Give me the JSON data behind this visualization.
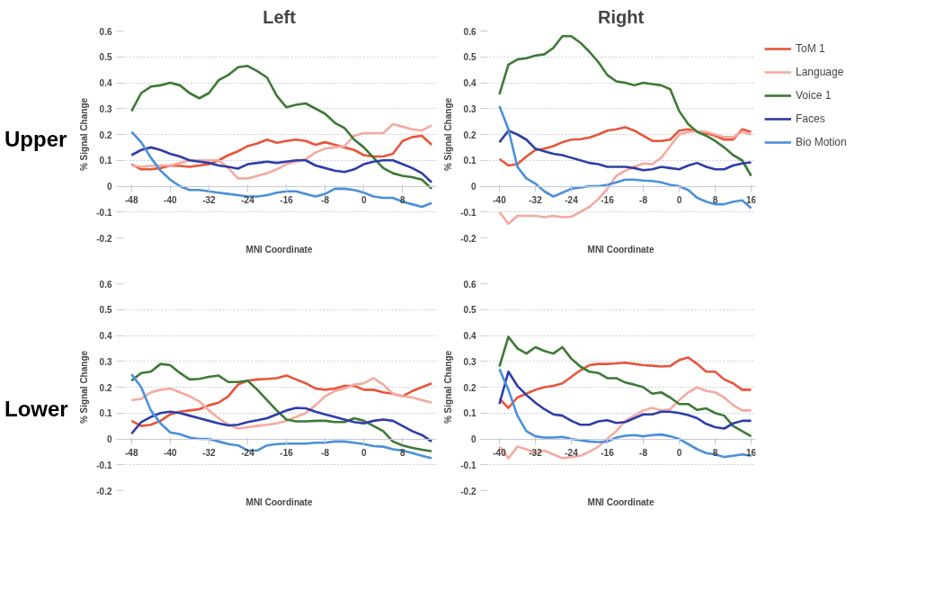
{
  "chart_data": [
    {
      "type": "line",
      "title": "Left",
      "annotations": [
        "Upper"
      ],
      "xlabel": "MNI Coordinate",
      "ylabel": "% Signal Change",
      "xlim": [
        -50,
        15
      ],
      "xticks": [
        -48,
        -40,
        -32,
        -24,
        -16,
        -8,
        0,
        8
      ],
      "ylim": [
        -0.2,
        0.6
      ],
      "yticks": [
        -0.2,
        -0.1,
        0,
        0.1,
        0.2,
        0.3,
        0.4,
        0.5,
        0.6
      ],
      "grid": "y",
      "legend": false,
      "x": [
        -48,
        -46,
        -44,
        -42,
        -40,
        -38,
        -36,
        -34,
        -32,
        -30,
        -28,
        -26,
        -24,
        -22,
        -20,
        -18,
        -16,
        -14,
        -12,
        -10,
        -8,
        -6,
        -4,
        -2,
        0,
        2,
        4,
        6,
        8,
        10,
        12,
        14
      ],
      "series": [
        {
          "color": "#e8553a",
          "values": [
            0.085,
            0.065,
            0.065,
            0.07,
            0.08,
            0.078,
            0.075,
            0.08,
            0.085,
            0.1,
            0.12,
            0.135,
            0.155,
            0.165,
            0.18,
            0.168,
            0.175,
            0.18,
            0.175,
            0.16,
            0.17,
            0.16,
            0.15,
            0.14,
            0.12,
            0.115,
            0.115,
            0.125,
            0.175,
            0.19,
            0.195,
            0.16
          ]
        },
        {
          "color": "#f4aaa0",
          "values": [
            0.08,
            0.075,
            0.078,
            0.08,
            0.08,
            0.09,
            0.1,
            0.1,
            0.1,
            0.1,
            0.07,
            0.03,
            0.03,
            0.04,
            0.05,
            0.065,
            0.085,
            0.095,
            0.105,
            0.13,
            0.145,
            0.15,
            0.155,
            0.195,
            0.205,
            0.205,
            0.205,
            0.24,
            0.23,
            0.22,
            0.215,
            0.235
          ]
        },
        {
          "color": "#3d7a35",
          "values": [
            0.29,
            0.36,
            0.385,
            0.39,
            0.4,
            0.39,
            0.36,
            0.34,
            0.36,
            0.41,
            0.43,
            0.46,
            0.465,
            0.445,
            0.42,
            0.35,
            0.305,
            0.315,
            0.32,
            0.3,
            0.28,
            0.245,
            0.225,
            0.18,
            0.15,
            0.11,
            0.07,
            0.05,
            0.04,
            0.035,
            0.025,
            -0.01
          ]
        },
        {
          "color": "#2f3ea8",
          "values": [
            0.12,
            0.14,
            0.15,
            0.14,
            0.125,
            0.115,
            0.1,
            0.095,
            0.09,
            0.08,
            0.075,
            0.068,
            0.085,
            0.09,
            0.095,
            0.09,
            0.095,
            0.1,
            0.1,
            0.08,
            0.07,
            0.06,
            0.055,
            0.065,
            0.085,
            0.095,
            0.1,
            0.1,
            0.085,
            0.07,
            0.05,
            0.015
          ]
        },
        {
          "color": "#4a90d9",
          "values": [
            0.21,
            0.17,
            0.11,
            0.06,
            0.025,
            0.0,
            -0.015,
            -0.015,
            -0.02,
            -0.025,
            -0.03,
            -0.035,
            -0.04,
            -0.04,
            -0.035,
            -0.025,
            -0.02,
            -0.02,
            -0.03,
            -0.04,
            -0.03,
            -0.01,
            -0.01,
            -0.015,
            -0.025,
            -0.04,
            -0.045,
            -0.045,
            -0.06,
            -0.07,
            -0.08,
            -0.065
          ]
        }
      ]
    },
    {
      "type": "line",
      "title": "Right",
      "xlabel": "MNI Coordinate",
      "ylabel": "% Signal Change",
      "xlim": [
        -43,
        17
      ],
      "xticks": [
        -40,
        -32,
        -24,
        -16,
        -8,
        0,
        8,
        16
      ],
      "ylim": [
        -0.2,
        0.6
      ],
      "yticks": [
        -0.2,
        -0.1,
        0,
        0.1,
        0.2,
        0.3,
        0.4,
        0.5,
        0.6
      ],
      "grid": "y",
      "legend": "right",
      "x": [
        -40,
        -38,
        -36,
        -34,
        -32,
        -30,
        -28,
        -26,
        -24,
        -22,
        -20,
        -18,
        -16,
        -14,
        -12,
        -10,
        -8,
        -6,
        -4,
        -2,
        0,
        2,
        4,
        6,
        8,
        10,
        12,
        14,
        16
      ],
      "series": [
        {
          "name": "ToM 1",
          "color": "#e8553a",
          "values": [
            0.105,
            0.08,
            0.085,
            0.115,
            0.14,
            0.145,
            0.155,
            0.17,
            0.18,
            0.182,
            0.188,
            0.2,
            0.215,
            0.22,
            0.228,
            0.215,
            0.195,
            0.175,
            0.175,
            0.18,
            0.215,
            0.22,
            0.212,
            0.205,
            0.195,
            0.18,
            0.18,
            0.22,
            0.21
          ]
        },
        {
          "name": "Language",
          "color": "#f4aaa0",
          "values": [
            -0.1,
            -0.145,
            -0.115,
            -0.115,
            -0.115,
            -0.12,
            -0.115,
            -0.12,
            -0.118,
            -0.1,
            -0.08,
            -0.05,
            -0.01,
            0.04,
            0.06,
            0.075,
            0.088,
            0.085,
            0.11,
            0.155,
            0.2,
            0.21,
            0.212,
            0.21,
            0.2,
            0.19,
            0.19,
            0.21,
            0.2
          ]
        },
        {
          "name": "Voice 1",
          "color": "#3d7a35",
          "values": [
            0.355,
            0.47,
            0.49,
            0.495,
            0.505,
            0.51,
            0.535,
            0.58,
            0.58,
            0.555,
            0.52,
            0.48,
            0.43,
            0.405,
            0.4,
            0.39,
            0.4,
            0.395,
            0.39,
            0.375,
            0.29,
            0.24,
            0.21,
            0.195,
            0.175,
            0.15,
            0.12,
            0.1,
            0.04
          ]
        },
        {
          "name": "Faces",
          "color": "#2f3ea8",
          "values": [
            0.17,
            0.215,
            0.2,
            0.18,
            0.145,
            0.135,
            0.125,
            0.12,
            0.11,
            0.1,
            0.09,
            0.085,
            0.075,
            0.075,
            0.075,
            0.07,
            0.062,
            0.065,
            0.075,
            0.07,
            0.065,
            0.08,
            0.09,
            0.075,
            0.065,
            0.065,
            0.08,
            0.088,
            0.092
          ]
        },
        {
          "name": "Bio Motion",
          "color": "#4a90d9",
          "values": [
            0.31,
            0.22,
            0.075,
            0.03,
            0.01,
            -0.02,
            -0.04,
            -0.025,
            -0.01,
            -0.005,
            0.0,
            0.0,
            0.005,
            0.015,
            0.025,
            0.025,
            0.022,
            0.02,
            0.015,
            0.005,
            0.0,
            -0.015,
            -0.045,
            -0.06,
            -0.07,
            -0.07,
            -0.06,
            -0.055,
            -0.085
          ]
        }
      ]
    },
    {
      "type": "line",
      "annotations": [
        "Lower"
      ],
      "xlabel": "MNI Coordinate",
      "ylabel": "% Signal Change",
      "xlim": [
        -50,
        15
      ],
      "xticks": [
        -48,
        -40,
        -32,
        -24,
        -16,
        -8,
        0,
        8
      ],
      "ylim": [
        -0.2,
        0.6
      ],
      "yticks": [
        -0.2,
        -0.1,
        0,
        0.1,
        0.2,
        0.3,
        0.4,
        0.5,
        0.6
      ],
      "grid": "y",
      "legend": false,
      "x": [
        -48,
        -46,
        -44,
        -42,
        -40,
        -38,
        -36,
        -34,
        -32,
        -30,
        -28,
        -26,
        -24,
        -22,
        -20,
        -18,
        -16,
        -14,
        -12,
        -10,
        -8,
        -6,
        -4,
        -2,
        0,
        2,
        4,
        6,
        8,
        10,
        12,
        14
      ],
      "series": [
        {
          "color": "#e8553a",
          "values": [
            0.07,
            0.05,
            0.055,
            0.07,
            0.095,
            0.105,
            0.11,
            0.115,
            0.13,
            0.14,
            0.165,
            0.21,
            0.225,
            0.23,
            0.232,
            0.235,
            0.245,
            0.23,
            0.215,
            0.195,
            0.19,
            0.195,
            0.205,
            0.205,
            0.19,
            0.19,
            0.18,
            0.175,
            0.165,
            0.185,
            0.2,
            0.215
          ]
        },
        {
          "color": "#f4aaa0",
          "values": [
            0.15,
            0.155,
            0.18,
            0.19,
            0.195,
            0.18,
            0.165,
            0.145,
            0.11,
            0.08,
            0.055,
            0.04,
            0.045,
            0.05,
            0.055,
            0.06,
            0.07,
            0.085,
            0.1,
            0.13,
            0.165,
            0.185,
            0.195,
            0.21,
            0.215,
            0.235,
            0.21,
            0.175,
            0.165,
            0.16,
            0.15,
            0.14
          ]
        },
        {
          "color": "#3d7a35",
          "values": [
            0.225,
            0.255,
            0.26,
            0.29,
            0.285,
            0.255,
            0.23,
            0.232,
            0.24,
            0.245,
            0.22,
            0.22,
            0.225,
            0.19,
            0.15,
            0.11,
            0.075,
            0.068,
            0.068,
            0.07,
            0.07,
            0.065,
            0.065,
            0.08,
            0.07,
            0.05,
            0.03,
            -0.01,
            -0.025,
            -0.035,
            -0.042,
            -0.048
          ]
        },
        {
          "color": "#2f3ea8",
          "values": [
            0.02,
            0.065,
            0.085,
            0.1,
            0.105,
            0.1,
            0.09,
            0.08,
            0.07,
            0.06,
            0.052,
            0.055,
            0.065,
            0.072,
            0.08,
            0.095,
            0.11,
            0.12,
            0.118,
            0.105,
            0.095,
            0.085,
            0.075,
            0.065,
            0.06,
            0.07,
            0.075,
            0.07,
            0.05,
            0.03,
            0.015,
            -0.01
          ]
        },
        {
          "color": "#4a90d9",
          "values": [
            0.25,
            0.2,
            0.11,
            0.06,
            0.025,
            0.018,
            0.005,
            0.0,
            0.0,
            -0.01,
            -0.02,
            -0.025,
            -0.045,
            -0.045,
            -0.025,
            -0.02,
            -0.018,
            -0.018,
            -0.018,
            -0.015,
            -0.015,
            -0.01,
            -0.01,
            -0.015,
            -0.02,
            -0.028,
            -0.03,
            -0.04,
            -0.045,
            -0.055,
            -0.065,
            -0.075
          ]
        }
      ]
    },
    {
      "type": "line",
      "xlabel": "MNI Coordinate",
      "ylabel": "% Signal Change",
      "xlim": [
        -43,
        17
      ],
      "xticks": [
        -40,
        -32,
        -24,
        -16,
        -8,
        0,
        8,
        16
      ],
      "ylim": [
        -0.2,
        0.6
      ],
      "yticks": [
        -0.2,
        -0.1,
        0,
        0.1,
        0.2,
        0.3,
        0.4,
        0.5,
        0.6
      ],
      "grid": "y",
      "legend": false,
      "x": [
        -40,
        -38,
        -36,
        -34,
        -32,
        -30,
        -28,
        -26,
        -24,
        -22,
        -20,
        -18,
        -16,
        -14,
        -12,
        -10,
        -8,
        -6,
        -4,
        -2,
        0,
        2,
        4,
        6,
        8,
        10,
        12,
        14,
        16
      ],
      "series": [
        {
          "color": "#e8553a",
          "values": [
            0.155,
            0.12,
            0.16,
            0.175,
            0.19,
            0.2,
            0.205,
            0.215,
            0.24,
            0.265,
            0.285,
            0.29,
            0.29,
            0.292,
            0.295,
            0.29,
            0.285,
            0.283,
            0.28,
            0.282,
            0.305,
            0.315,
            0.29,
            0.26,
            0.26,
            0.23,
            0.215,
            0.19,
            0.19
          ]
        },
        {
          "color": "#f4aaa0",
          "values": [
            -0.03,
            -0.075,
            -0.03,
            -0.04,
            -0.055,
            -0.045,
            -0.06,
            -0.075,
            -0.07,
            -0.065,
            -0.05,
            -0.03,
            0.0,
            0.03,
            0.07,
            0.09,
            0.11,
            0.12,
            0.11,
            0.115,
            0.15,
            0.18,
            0.2,
            0.185,
            0.18,
            0.16,
            0.13,
            0.11,
            0.11
          ]
        },
        {
          "color": "#3d7a35",
          "values": [
            0.28,
            0.395,
            0.35,
            0.33,
            0.355,
            0.34,
            0.33,
            0.355,
            0.31,
            0.28,
            0.26,
            0.255,
            0.235,
            0.235,
            0.218,
            0.21,
            0.2,
            0.175,
            0.18,
            0.16,
            0.135,
            0.135,
            0.112,
            0.118,
            0.1,
            0.09,
            0.05,
            0.03,
            0.01
          ]
        },
        {
          "color": "#2f3ea8",
          "values": [
            0.135,
            0.26,
            0.205,
            0.17,
            0.14,
            0.115,
            0.095,
            0.09,
            0.07,
            0.055,
            0.055,
            0.068,
            0.072,
            0.062,
            0.065,
            0.08,
            0.095,
            0.095,
            0.105,
            0.105,
            0.1,
            0.092,
            0.08,
            0.058,
            0.045,
            0.04,
            0.06,
            0.07,
            0.07
          ]
        },
        {
          "color": "#4a90d9",
          "values": [
            0.27,
            0.19,
            0.09,
            0.03,
            0.01,
            0.005,
            0.005,
            0.008,
            0.0,
            -0.005,
            -0.01,
            -0.012,
            -0.01,
            0.005,
            0.012,
            0.015,
            0.01,
            0.015,
            0.017,
            0.01,
            0.0,
            -0.02,
            -0.04,
            -0.055,
            -0.06,
            -0.07,
            -0.065,
            -0.06,
            -0.065
          ]
        }
      ]
    }
  ]
}
